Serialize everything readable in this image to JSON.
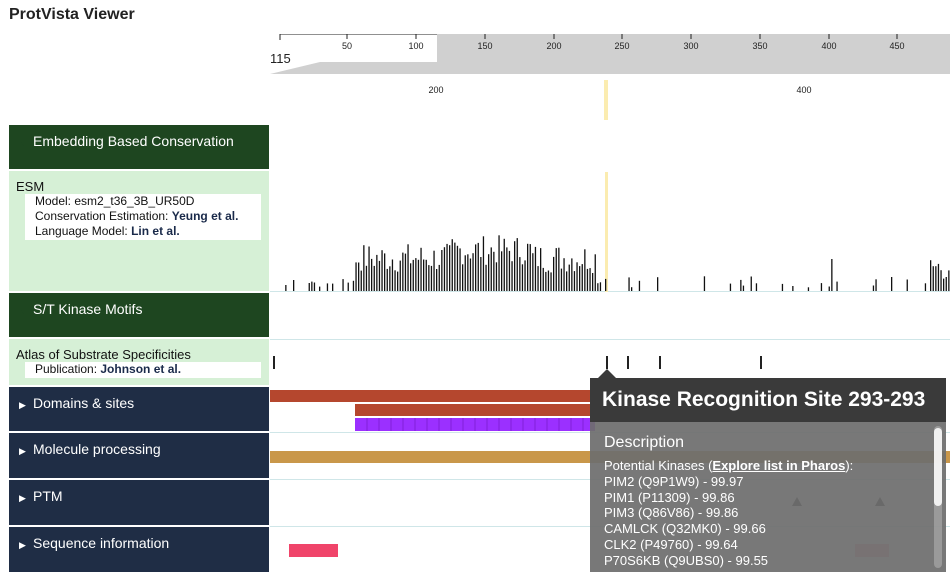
{
  "app": {
    "title": "ProtVista Viewer"
  },
  "navigation": {
    "ticks": [
      "50",
      "100",
      "150",
      "200",
      "250",
      "300",
      "350",
      "400",
      "450"
    ],
    "start_label": "115"
  },
  "zoom_axis": {
    "ticks": [
      "200",
      "400"
    ]
  },
  "panels": {
    "embedding": {
      "title": "Embedding Based Conservation"
    },
    "esm": {
      "title": "ESM",
      "model": "Model: esm2_t36_3B_UR50D",
      "conservation_prefix": "Conservation Estimation: ",
      "conservation_ref": "Yeung et al.",
      "language_prefix": "Language Model: ",
      "language_ref": "Lin et al."
    },
    "st_kinase": {
      "title": "S/T Kinase Motifs"
    },
    "atlas": {
      "title": "Atlas of Substrate Specificities",
      "publication_prefix": "Publication: ",
      "publication_ref": "Johnson et al."
    },
    "domains": {
      "title": "Domains & sites"
    },
    "molecule": {
      "title": "Molecule processing"
    },
    "ptm": {
      "title": "PTM"
    },
    "sequence": {
      "title": "Sequence information"
    }
  },
  "tooltip": {
    "title": "Kinase Recognition Site 293-293",
    "description_heading": "Description",
    "kinases_prefix": "Potential Kinases (",
    "kinases_link": "Explore list in Pharos",
    "kinases_suffix": "):",
    "kinases": [
      "PIM2 (Q9P1W9) - 99.97",
      "PIM1 (P11309) - 99.86",
      "PIM3 (Q86V86) - 99.86",
      "CAMLCK (Q32MK0) - 99.66",
      "CLK2 (P49760) - 99.64",
      "P70S6KB (Q9UBS0) - 99.55"
    ]
  },
  "colors": {
    "dark_green": "#1e4620",
    "light_green": "#d6f0d6",
    "navy": "#1f2d45",
    "domain_red": "#b5472e",
    "purple": "#9b30ff",
    "gold": "#c9974a",
    "pink": "#f0446a",
    "highlight": "#f7e08a"
  }
}
